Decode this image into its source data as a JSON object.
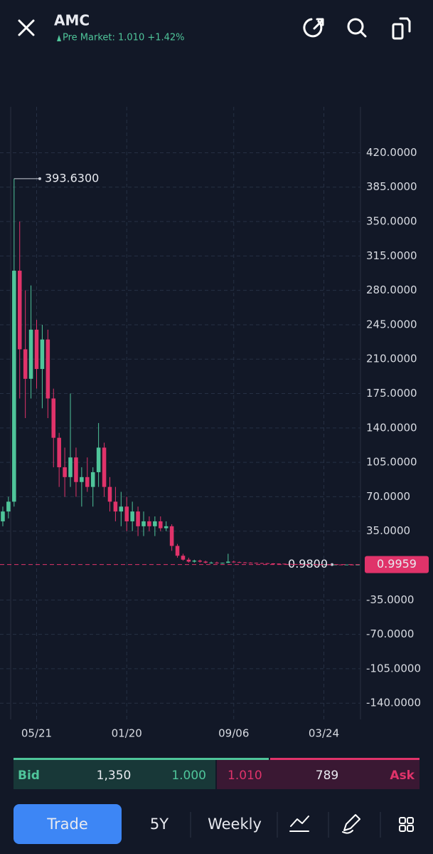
{
  "header": {
    "symbol": "AMC",
    "subtitle": "Pre Market: 1.010 +1.42%"
  },
  "chart_data": {
    "type": "candlestick",
    "categories": [
      null,
      null,
      null,
      null,
      null,
      null,
      "05/21",
      null,
      null,
      null,
      null,
      null,
      null,
      null,
      null,
      null,
      null,
      null,
      null,
      null,
      null,
      null,
      "01/20",
      null,
      null,
      null,
      null,
      null,
      null,
      null,
      null,
      null,
      null,
      null,
      null,
      null,
      null,
      null,
      null,
      null,
      null,
      "09/06",
      null,
      null,
      null,
      null,
      null,
      null,
      null,
      null,
      null,
      null,
      null,
      null,
      null,
      null,
      null,
      "03/24",
      null,
      null,
      null,
      null,
      null,
      null
    ],
    "open": [
      45,
      55,
      65,
      300,
      220,
      190,
      240,
      200,
      230,
      170,
      130,
      100,
      90,
      110,
      85,
      90,
      80,
      95,
      120,
      80,
      65,
      55,
      60,
      45,
      55,
      40,
      45,
      40,
      45,
      38,
      40,
      20,
      10,
      6,
      4,
      5,
      4,
      3,
      3,
      2.5,
      2.8,
      4,
      3.5,
      3.2,
      3,
      2.8,
      2.5,
      2.4,
      2.2,
      2,
      1.9,
      1.7,
      1.5,
      1.3,
      1.2,
      1.1,
      1.2,
      1.05,
      1.1,
      1.0,
      1.05,
      1.0,
      1.02,
      0.99
    ],
    "high": [
      60,
      70,
      393.63,
      350,
      280,
      285,
      250,
      245,
      240,
      180,
      135,
      120,
      175,
      120,
      100,
      110,
      100,
      145,
      125,
      90,
      80,
      75,
      70,
      65,
      60,
      55,
      50,
      50,
      50,
      45,
      42,
      22,
      12,
      8,
      6,
      6,
      5,
      4,
      4,
      3,
      12,
      5,
      4,
      3.6,
      3.3,
      3,
      2.8,
      2.6,
      2.4,
      2.2,
      2,
      1.9,
      1.7,
      1.5,
      1.4,
      1.3,
      1.3,
      1.2,
      1.2,
      1.1,
      1.1,
      1.1,
      1.1,
      1.05
    ],
    "low": [
      40,
      48,
      60,
      170,
      150,
      170,
      180,
      160,
      150,
      100,
      80,
      70,
      80,
      70,
      60,
      75,
      60,
      80,
      70,
      55,
      45,
      40,
      35,
      35,
      30,
      30,
      35,
      30,
      35,
      35,
      15,
      8,
      5,
      3,
      3,
      3,
      2,
      2,
      2,
      2,
      2.5,
      3,
      3,
      2.8,
      2.6,
      2.4,
      2.2,
      2,
      1.8,
      1.7,
      1.6,
      1.4,
      1.2,
      1.1,
      1.0,
      1.0,
      1.0,
      0.98,
      1.0,
      0.98,
      1.0,
      0.99,
      1.0,
      0.98
    ],
    "close": [
      55,
      65,
      300,
      220,
      190,
      240,
      200,
      230,
      170,
      130,
      100,
      90,
      110,
      85,
      90,
      80,
      95,
      120,
      80,
      65,
      55,
      60,
      45,
      55,
      40,
      45,
      40,
      45,
      38,
      40,
      20,
      10,
      6,
      4,
      5,
      4,
      3,
      3,
      2.5,
      2.8,
      4,
      3.5,
      3.2,
      3,
      2.8,
      2.5,
      2.4,
      2.2,
      2,
      1.9,
      1.7,
      1.5,
      1.3,
      1.2,
      1.1,
      1.2,
      1.05,
      1.1,
      1.0,
      1.05,
      1.0,
      1.02,
      0.99,
      0.9959
    ],
    "up_color": "#4fc59a",
    "down_color": "#e0336a",
    "ylim": [
      -156.5,
      466.7
    ],
    "yticks": [
      {
        "value": 420,
        "label": "420.0000"
      },
      {
        "value": 385,
        "label": "385.0000"
      },
      {
        "value": 350,
        "label": "350.0000"
      },
      {
        "value": 315,
        "label": "315.0000"
      },
      {
        "value": 280,
        "label": "280.0000"
      },
      {
        "value": 245,
        "label": "245.0000"
      },
      {
        "value": 210,
        "label": "210.0000"
      },
      {
        "value": 175,
        "label": "175.0000"
      },
      {
        "value": 140,
        "label": "140.0000"
      },
      {
        "value": 105,
        "label": "105.0000"
      },
      {
        "value": 70,
        "label": "70.0000"
      },
      {
        "value": 35,
        "label": "35.0000"
      },
      {
        "value": -35,
        "label": "-35.0000"
      },
      {
        "value": -70,
        "label": "-70.0000"
      },
      {
        "value": -105,
        "label": "-105.0000"
      },
      {
        "value": -140,
        "label": "-140.0000"
      }
    ],
    "grid": true,
    "max_label": "393.6300",
    "min_label": "0.9800",
    "last_price_label": "0.9959"
  },
  "quote": {
    "bid_label": "Bid",
    "bid_size": "1,350",
    "bid_price": "1.000",
    "ask_price": "1.010",
    "ask_size": "789",
    "ask_label": "Ask"
  },
  "toolbar": {
    "trade": "Trade",
    "range": "5Y",
    "interval": "Weekly"
  }
}
